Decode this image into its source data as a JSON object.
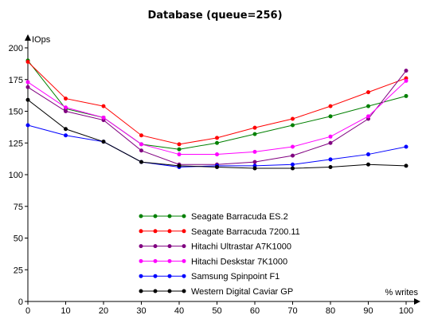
{
  "chart_data": {
    "type": "line",
    "title": "Database (queue=256)",
    "ylabel": "IOps",
    "xlabel": "% writes",
    "x": [
      0,
      10,
      20,
      30,
      40,
      50,
      60,
      70,
      80,
      90,
      100
    ],
    "xlim": [
      0,
      100
    ],
    "ylim": [
      0,
      200
    ],
    "yticks": [
      0,
      25,
      50,
      75,
      100,
      125,
      150,
      175,
      200
    ],
    "grid": false,
    "legend_position": "bottom-center",
    "series": [
      {
        "name": "Seagate Barracuda ES.2",
        "color": "#008000",
        "values": [
          190,
          152,
          145,
          124,
          120,
          125,
          132,
          139,
          146,
          154,
          162
        ]
      },
      {
        "name": "Seagate Barracuda 7200.11",
        "color": "#ff0000",
        "values": [
          189,
          160,
          154,
          131,
          124,
          129,
          137,
          144,
          154,
          165,
          176
        ]
      },
      {
        "name": "Hitachi Ultrastar A7K1000",
        "color": "#800080",
        "values": [
          169,
          150,
          143,
          119,
          108,
          108,
          110,
          115,
          125,
          144,
          182
        ]
      },
      {
        "name": "Hitachi Deskstar 7K1000",
        "color": "#ff00ff",
        "values": [
          173,
          153,
          145,
          124,
          116,
          116,
          118,
          122,
          130,
          146,
          174
        ]
      },
      {
        "name": "Samsung Spinpoint F1",
        "color": "#0000ff",
        "values": [
          139,
          131,
          126,
          110,
          106,
          107,
          107,
          108,
          112,
          116,
          122
        ]
      },
      {
        "name": "Western Digital Caviar GP",
        "color": "#000000",
        "values": [
          159,
          136,
          126,
          110,
          107,
          106,
          105,
          105,
          106,
          108,
          107
        ]
      }
    ]
  }
}
